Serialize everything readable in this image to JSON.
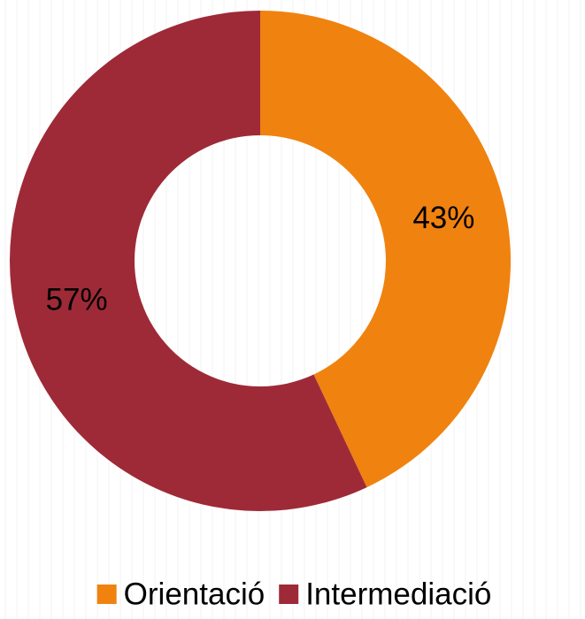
{
  "chart_data": {
    "type": "pie",
    "donut": true,
    "categories": [
      "Orientació",
      "Intermediació"
    ],
    "values": [
      43,
      57
    ],
    "value_labels": [
      "43%",
      "57%"
    ],
    "colors": [
      "#f0820f",
      "#9e2a37"
    ],
    "legend": "bottom"
  }
}
